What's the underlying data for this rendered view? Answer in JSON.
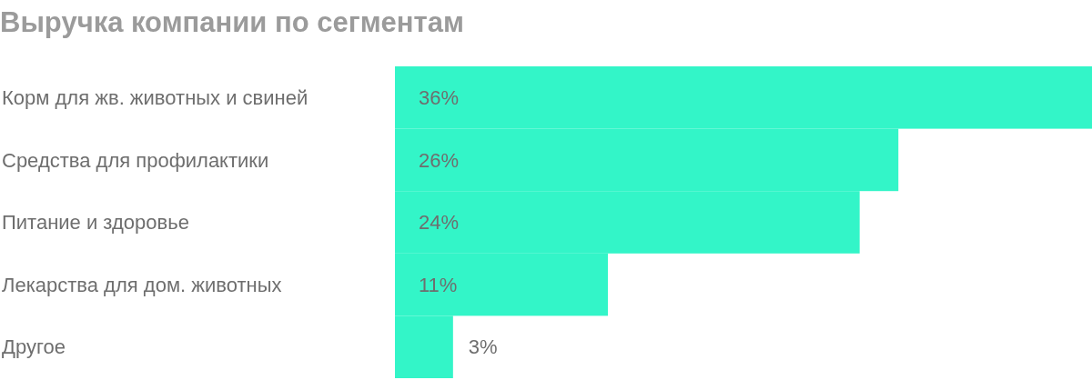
{
  "chart_data": {
    "type": "bar",
    "orientation": "horizontal",
    "title": "Выручка компании по сегментам",
    "categories": [
      "Корм для жв. животных и свиней",
      "Средства для профилактики",
      "Питание и здоровье",
      "Лекарства для дом. животных",
      "Другое"
    ],
    "values": [
      36,
      26,
      24,
      11,
      3
    ],
    "color": "#33f5c8",
    "data_labels": true,
    "value_labels": [
      "36%",
      "26%",
      "24%",
      "11%",
      "3%"
    ]
  }
}
